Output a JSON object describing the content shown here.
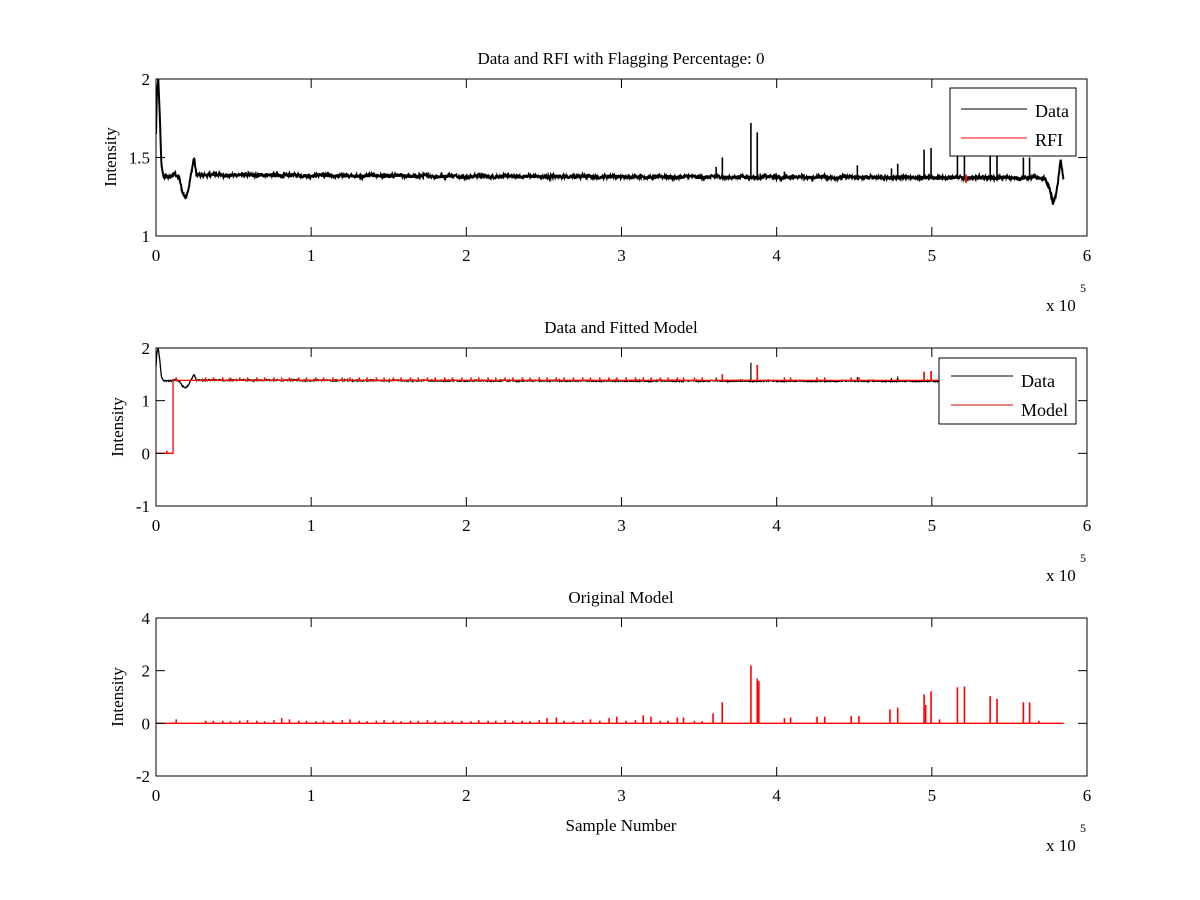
{
  "colors": {
    "data": "#000000",
    "rfi": "#ff0000",
    "model_legend": "#cc0000",
    "axes": "#000000",
    "background": "#ffffff"
  },
  "chart_data": [
    {
      "type": "line",
      "title": "Data and RFI with Flagging Percentage: 0",
      "xlabel": "",
      "ylabel": "Intensity",
      "xlim": [
        0,
        6
      ],
      "ylim": [
        1,
        2
      ],
      "xticks": [
        "0",
        "1",
        "2",
        "3",
        "4",
        "5",
        "6"
      ],
      "yticks": [
        "1",
        "1.5",
        "2"
      ],
      "ytick_values": [
        1,
        1.5,
        2
      ],
      "x_multiplier": "x 10",
      "x_multiplier_exp": "5",
      "legend": {
        "placement": "top-right",
        "entries": [
          "Data",
          "RFI"
        ]
      },
      "series": [
        {
          "name": "Data",
          "kind": "data",
          "color": "#000000",
          "keypoints": [
            [
              0,
              1.65
            ],
            [
              0.005,
              1.9
            ],
            [
              0.015,
              2.0
            ],
            [
              0.025,
              1.75
            ],
            [
              0.035,
              1.45
            ],
            [
              0.05,
              1.37
            ],
            [
              0.1,
              1.38
            ],
            [
              0.12,
              1.4
            ],
            [
              0.15,
              1.37
            ],
            [
              0.17,
              1.28
            ],
            [
              0.19,
              1.24
            ],
            [
              0.21,
              1.3
            ],
            [
              0.245,
              1.5
            ],
            [
              0.26,
              1.39
            ],
            [
              2.0,
              1.38
            ],
            [
              5.73,
              1.37
            ],
            [
              5.76,
              1.3
            ],
            [
              5.78,
              1.21
            ],
            [
              5.8,
              1.25
            ],
            [
              5.83,
              1.48
            ],
            [
              5.85,
              1.35
            ]
          ],
          "spikes": [
            [
              3.61,
              1.44
            ],
            [
              3.65,
              1.5
            ],
            [
              3.834,
              1.72
            ],
            [
              3.875,
              1.66
            ],
            [
              4.05,
              1.41
            ],
            [
              4.52,
              1.45
            ],
            [
              4.74,
              1.43
            ],
            [
              4.78,
              1.46
            ],
            [
              4.95,
              1.55
            ],
            [
              4.995,
              1.56
            ],
            [
              5.165,
              1.6
            ],
            [
              5.21,
              1.62
            ],
            [
              5.376,
              1.55
            ],
            [
              5.42,
              1.52
            ],
            [
              5.59,
              1.5
            ],
            [
              5.63,
              1.5
            ]
          ]
        },
        {
          "name": "RFI",
          "kind": "marks",
          "color": "#ff0000",
          "segments": [
            [
              5.22,
              1.34,
              1.39
            ]
          ]
        }
      ]
    },
    {
      "type": "line",
      "title": "Data and Fitted Model",
      "xlabel": "",
      "ylabel": "Intensity",
      "xlim": [
        0,
        6
      ],
      "ylim": [
        -1,
        2
      ],
      "xticks": [
        "0",
        "1",
        "2",
        "3",
        "4",
        "5",
        "6"
      ],
      "yticks": [
        "-1",
        "0",
        "1",
        "2"
      ],
      "ytick_values": [
        -1,
        0,
        1,
        2
      ],
      "x_multiplier": "x 10",
      "x_multiplier_exp": "5",
      "legend": {
        "placement": "top-right",
        "entries": [
          "Data",
          "Model"
        ]
      },
      "series": [
        {
          "name": "Data",
          "kind": "data",
          "color": "#000000",
          "same_as_panel": 0
        },
        {
          "name": "Model",
          "kind": "model",
          "color": "#ff0000",
          "initial_level": 0,
          "step_at": 0.11,
          "level": 1.385,
          "spikes": [
            [
              0.07,
              0.05
            ],
            [
              3.65,
              1.5
            ],
            [
              3.875,
              1.68
            ],
            [
              4.95,
              1.55
            ],
            [
              4.995,
              1.56
            ],
            [
              5.21,
              1.45
            ]
          ]
        }
      ]
    },
    {
      "type": "line",
      "title": "Original Model",
      "xlabel": "Sample Number",
      "ylabel": "Intensity",
      "xlim": [
        0,
        6
      ],
      "ylim": [
        -2,
        4
      ],
      "xticks": [
        "0",
        "1",
        "2",
        "3",
        "4",
        "5",
        "6"
      ],
      "yticks": [
        "-2",
        "0",
        "2",
        "4"
      ],
      "ytick_values": [
        -2,
        0,
        2,
        4
      ],
      "x_multiplier": "x 10",
      "x_multiplier_exp": "5",
      "series": [
        {
          "name": "Original Model",
          "kind": "spikes",
          "color": "#ff0000",
          "level": 0,
          "x_end": 5.85,
          "spikes": [
            [
              0.13,
              0.15
            ],
            [
              0.32,
              0.1
            ],
            [
              0.37,
              0.1
            ],
            [
              0.43,
              0.1
            ],
            [
              0.48,
              0.08
            ],
            [
              0.54,
              0.1
            ],
            [
              0.59,
              0.12
            ],
            [
              0.65,
              0.1
            ],
            [
              0.7,
              0.08
            ],
            [
              0.76,
              0.12
            ],
            [
              0.81,
              0.2
            ],
            [
              0.86,
              0.15
            ],
            [
              0.92,
              0.1
            ],
            [
              0.97,
              0.1
            ],
            [
              1.03,
              0.08
            ],
            [
              1.08,
              0.1
            ],
            [
              1.14,
              0.1
            ],
            [
              1.2,
              0.12
            ],
            [
              1.25,
              0.15
            ],
            [
              1.31,
              0.1
            ],
            [
              1.36,
              0.08
            ],
            [
              1.42,
              0.1
            ],
            [
              1.47,
              0.12
            ],
            [
              1.53,
              0.1
            ],
            [
              1.58,
              0.08
            ],
            [
              1.64,
              0.1
            ],
            [
              1.69,
              0.1
            ],
            [
              1.75,
              0.12
            ],
            [
              1.8,
              0.1
            ],
            [
              1.86,
              0.08
            ],
            [
              1.91,
              0.1
            ],
            [
              1.97,
              0.1
            ],
            [
              2.03,
              0.08
            ],
            [
              2.08,
              0.12
            ],
            [
              2.14,
              0.1
            ],
            [
              2.19,
              0.1
            ],
            [
              2.25,
              0.12
            ],
            [
              2.3,
              0.1
            ],
            [
              2.36,
              0.1
            ],
            [
              2.41,
              0.08
            ],
            [
              2.47,
              0.12
            ],
            [
              2.52,
              0.2
            ],
            [
              2.58,
              0.22
            ],
            [
              2.63,
              0.1
            ],
            [
              2.69,
              0.08
            ],
            [
              2.75,
              0.12
            ],
            [
              2.8,
              0.15
            ],
            [
              2.86,
              0.1
            ],
            [
              2.92,
              0.2
            ],
            [
              2.97,
              0.25
            ],
            [
              3.03,
              0.1
            ],
            [
              3.09,
              0.12
            ],
            [
              3.14,
              0.3
            ],
            [
              3.19,
              0.25
            ],
            [
              3.25,
              0.1
            ],
            [
              3.3,
              0.1
            ],
            [
              3.36,
              0.22
            ],
            [
              3.4,
              0.22
            ],
            [
              3.47,
              0.1
            ],
            [
              3.52,
              0.08
            ],
            [
              3.59,
              0.38
            ],
            [
              3.649,
              0.8
            ],
            [
              3.834,
              2.2
            ],
            [
              3.875,
              1.7
            ],
            [
              3.885,
              1.6
            ],
            [
              4.05,
              0.2
            ],
            [
              4.09,
              0.22
            ],
            [
              4.26,
              0.25
            ],
            [
              4.31,
              0.25
            ],
            [
              4.48,
              0.28
            ],
            [
              4.53,
              0.28
            ],
            [
              4.73,
              0.53
            ],
            [
              4.78,
              0.6
            ],
            [
              4.95,
              1.1
            ],
            [
              4.96,
              0.7
            ],
            [
              4.995,
              1.22
            ],
            [
              5.05,
              0.15
            ],
            [
              5.165,
              1.37
            ],
            [
              5.21,
              1.4
            ],
            [
              5.376,
              1.03
            ],
            [
              5.42,
              0.93
            ],
            [
              5.59,
              0.8
            ],
            [
              5.63,
              0.8
            ],
            [
              5.69,
              0.1
            ]
          ]
        }
      ]
    }
  ]
}
